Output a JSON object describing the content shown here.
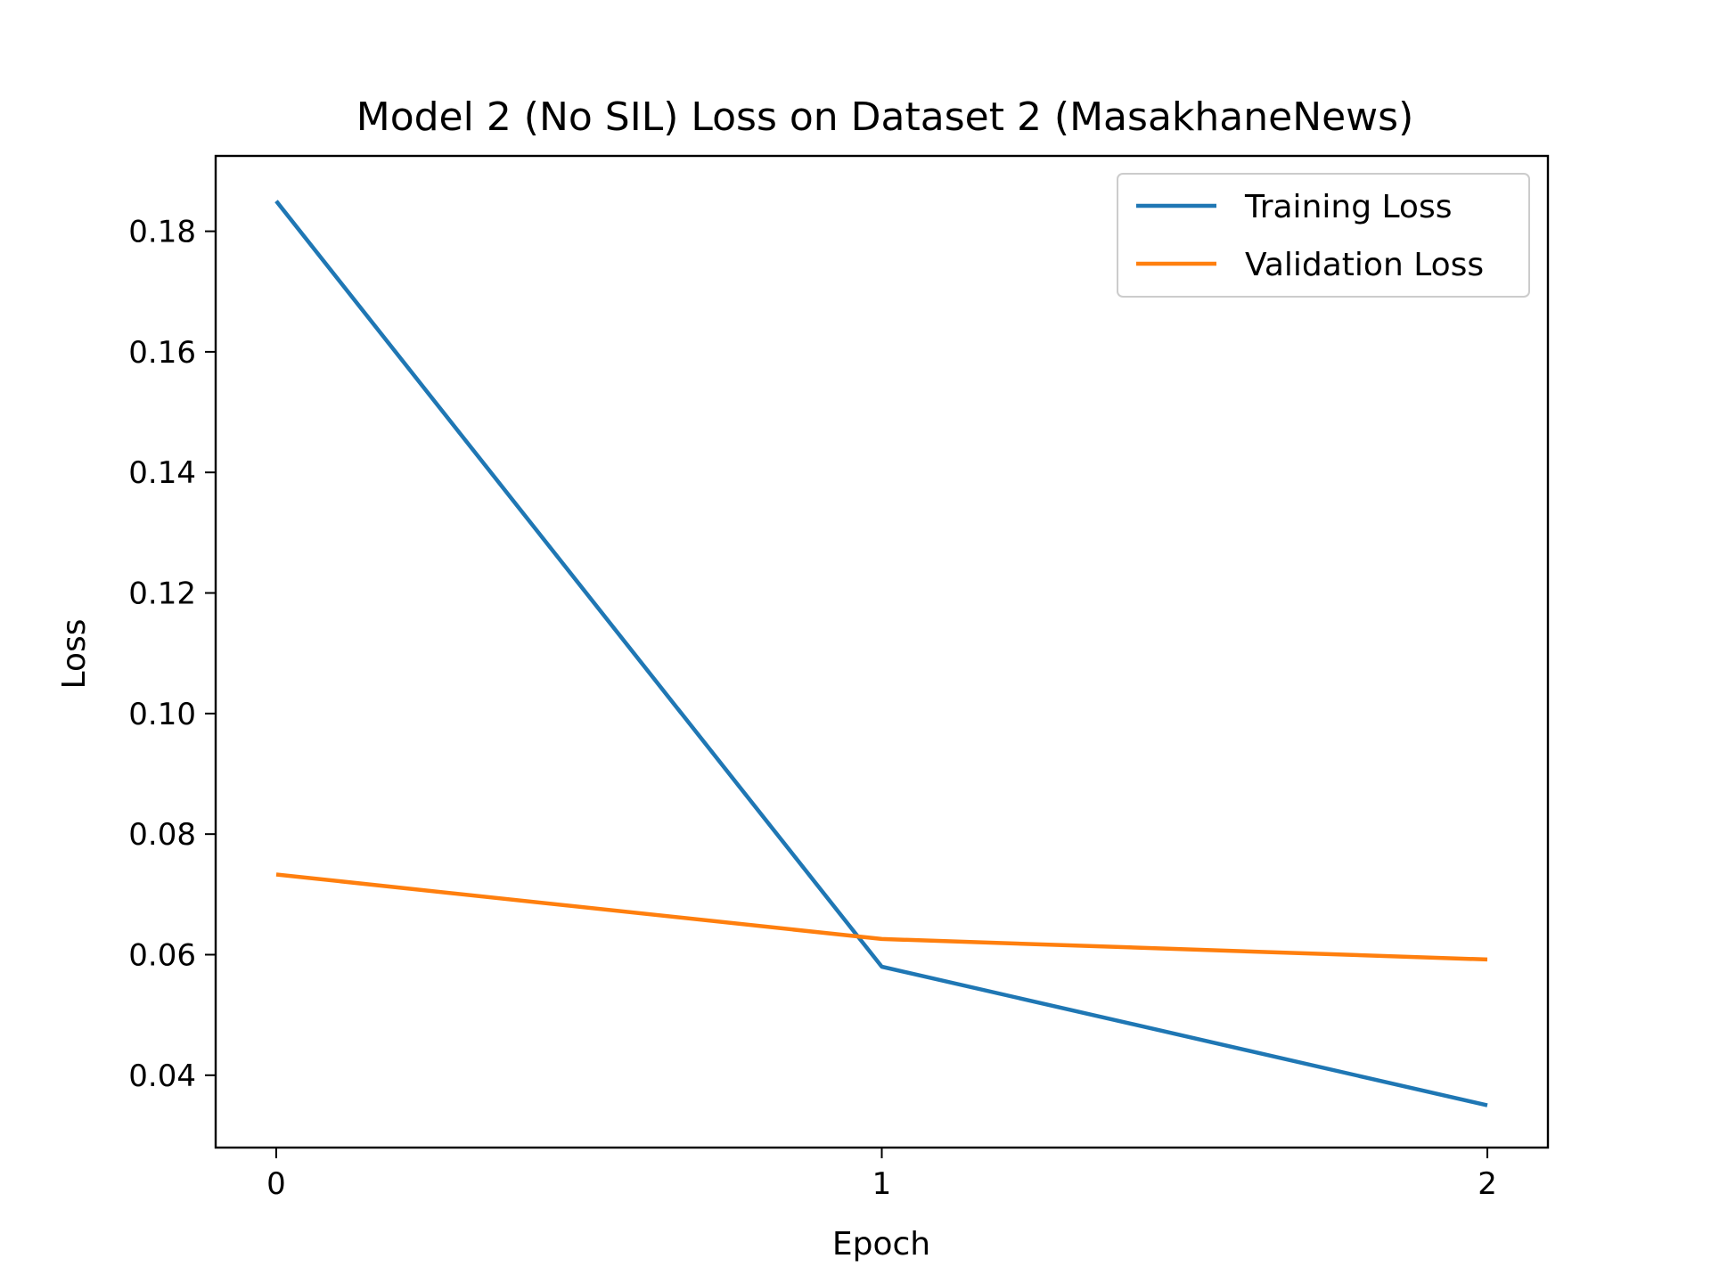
{
  "chart_data": {
    "type": "line",
    "title": "Model 2 (No SIL) Loss on Dataset 2 (MasakhaneNews)",
    "xlabel": "Epoch",
    "ylabel": "Loss",
    "x": [
      0,
      1,
      2
    ],
    "xticks": [
      "0",
      "1",
      "2"
    ],
    "yticks": [
      "0.04",
      "0.06",
      "0.08",
      "0.10",
      "0.12",
      "0.14",
      "0.16",
      "0.18"
    ],
    "xlim": [
      -0.1,
      2.1
    ],
    "ylim": [
      0.028,
      0.1925
    ],
    "grid": false,
    "legend_position": "top-right",
    "series": [
      {
        "name": "Training Loss",
        "values": [
          0.185,
          0.058,
          0.035
        ],
        "color": "#1f77b4"
      },
      {
        "name": "Validation Loss",
        "values": [
          0.0733,
          0.0626,
          0.0592
        ],
        "color": "#ff7f0e"
      }
    ]
  }
}
